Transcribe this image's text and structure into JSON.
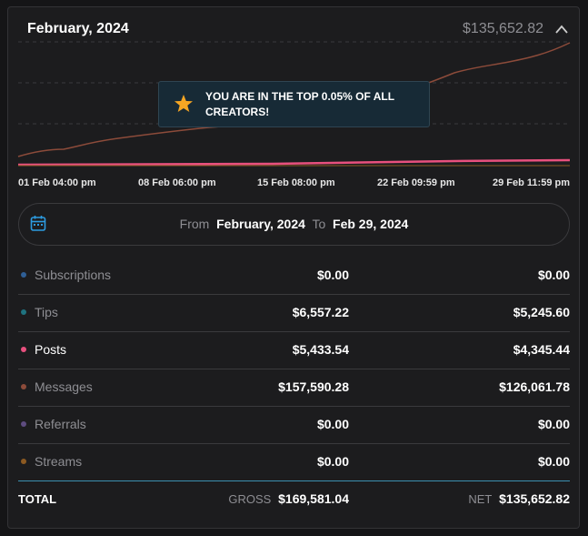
{
  "header": {
    "title": "February, 2024",
    "total": "$135,652.82"
  },
  "tooltip": {
    "text": "YOU ARE IN THE TOP 0.05% OF ALL CREATORS!"
  },
  "x_labels": [
    "01 Feb 04:00 pm",
    "08 Feb 06:00 pm",
    "15 Feb 08:00 pm",
    "22 Feb 09:59 pm",
    "29 Feb 11:59 pm"
  ],
  "date_range": {
    "from_label": "From",
    "from": "February, 2024",
    "to_label": "To",
    "to": "Feb 29, 2024"
  },
  "rows": [
    {
      "name": "Subscriptions",
      "color": "#2f5f96",
      "gross": "$0.00",
      "net": "$0.00"
    },
    {
      "name": "Tips",
      "color": "#1f7380",
      "gross": "$6,557.22",
      "net": "$5,245.60"
    },
    {
      "name": "Posts",
      "color": "#e8507e",
      "gross": "$5,433.54",
      "net": "$4,345.44"
    },
    {
      "name": "Messages",
      "color": "#8c4b3a",
      "gross": "$157,590.28",
      "net": "$126,061.78"
    },
    {
      "name": "Referrals",
      "color": "#5e4c80",
      "gross": "$0.00",
      "net": "$0.00"
    },
    {
      "name": "Streams",
      "color": "#8c5a22",
      "gross": "$0.00",
      "net": "$0.00"
    }
  ],
  "total": {
    "label": "TOTAL",
    "gross_label": "GROSS",
    "gross": "$169,581.04",
    "net_label": "NET",
    "net": "$135,652.82"
  }
}
